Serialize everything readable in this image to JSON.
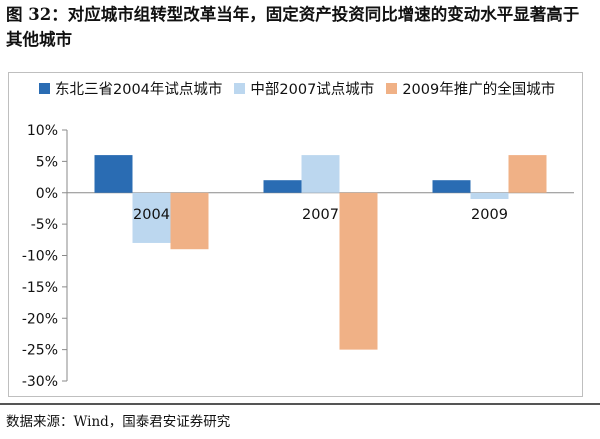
{
  "figure": {
    "title": "图 32：对应城市组转型改革当年，固定资产投资同比增速的变动水平显著高于其他城市",
    "source": "数据来源：Wind，国泰君安证券研究"
  },
  "colors": {
    "series1": "#2a6cb3",
    "series2": "#bcd7ef",
    "series3": "#f0b186",
    "axis": "#8a8a8a"
  },
  "chart_data": {
    "type": "bar",
    "categories": [
      "2004",
      "2007",
      "2009"
    ],
    "series": [
      {
        "name": "东北三省2004年试点城市",
        "values": [
          6,
          2,
          2
        ]
      },
      {
        "name": "中部2007试点城市",
        "values": [
          -8,
          6,
          -1
        ]
      },
      {
        "name": "2009年推广的全国城市",
        "values": [
          -9,
          -25,
          6
        ]
      }
    ],
    "ylim": [
      -30,
      10
    ],
    "yticks": [
      10,
      5,
      0,
      -5,
      -10,
      -15,
      -20,
      -25,
      -30
    ],
    "ytick_labels": [
      "10%",
      "5%",
      "0%",
      "-5%",
      "-10%",
      "-15%",
      "-20%",
      "-25%",
      "-30%"
    ],
    "legend_position": "top",
    "grid": false
  }
}
